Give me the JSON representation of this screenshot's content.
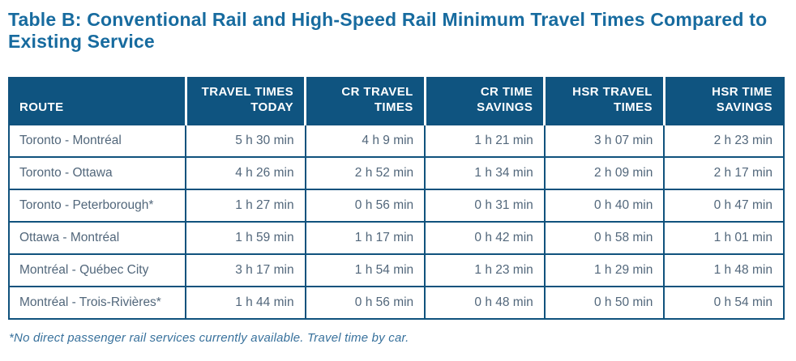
{
  "page": {
    "title": "Table B: Conventional Rail and High-Speed Rail Minimum Travel Times Compared to Existing Service",
    "footnote": "*No direct passenger rail services currently available. Travel time by car."
  },
  "table": {
    "columns": [
      "ROUTE",
      "TRAVEL TIMES TODAY",
      "CR TRAVEL TIMES",
      "CR TIME SAVINGS",
      "HSR TRAVEL TIMES",
      "HSR TIME SAVINGS"
    ],
    "rows": [
      [
        "Toronto - Montréal",
        "5 h 30 min",
        "4 h 9 min",
        "1 h 21 min",
        "3 h 07 min",
        "2 h 23 min"
      ],
      [
        "Toronto - Ottawa",
        "4 h 26 min",
        "2 h 52 min",
        "1 h 34 min",
        "2 h 09 min",
        "2 h 17 min"
      ],
      [
        "Toronto - Peterborough*",
        "1 h 27 min",
        "0 h 56 min",
        "0 h 31 min",
        "0 h 40 min",
        "0 h 47 min"
      ],
      [
        "Ottawa - Montréal",
        "1 h 59 min",
        "1 h 17 min",
        "0 h 42 min",
        "0 h 58 min",
        "1 h 01 min"
      ],
      [
        "Montréal - Québec City",
        "3 h 17 min",
        "1 h 54 min",
        "1 h 23 min",
        "1 h 29 min",
        "1 h 48 min"
      ],
      [
        "Montréal - Trois-Rivières*",
        "1 h 44 min",
        "0 h 56 min",
        "0 h 48 min",
        "0 h 50 min",
        "0 h 54 min"
      ]
    ]
  },
  "colors": {
    "title": "#176B9F",
    "header_bg": "#0F5480",
    "header_text": "#FFFFFF",
    "body_text": "#52677B",
    "border": "#10527D",
    "footnote_text": "#38719C",
    "page_bg": "#FFFFFF"
  }
}
